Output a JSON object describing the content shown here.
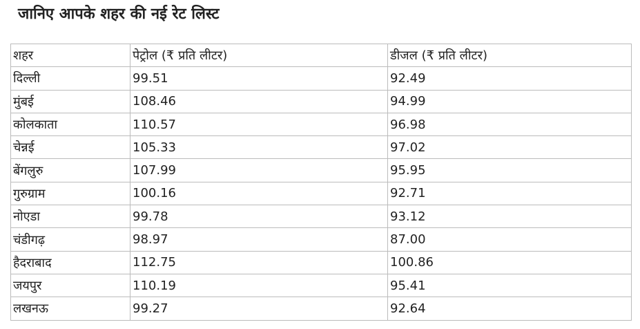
{
  "header": {
    "title": "जानिए आपके शहर की नई रेट लिस्ट"
  },
  "table": {
    "columns": [
      "शहर",
      "पेट्रोल (₹ प्रति लीटर)",
      "डीजल (₹ प्रति लीटर)"
    ],
    "rows": [
      [
        "दिल्ली",
        "99.51",
        "92.49"
      ],
      [
        "मुंबई",
        "108.46",
        "94.99"
      ],
      [
        "कोलकाता",
        "110.57",
        "96.98"
      ],
      [
        "चेन्नई",
        "105.33",
        "97.02"
      ],
      [
        "बेंगलुरु",
        "107.99",
        "95.95"
      ],
      [
        "गुरुग्राम",
        "100.16",
        "92.71"
      ],
      [
        "नोएडा",
        "99.78",
        "93.12"
      ],
      [
        "चंडीगढ़",
        "98.97",
        "87.00"
      ],
      [
        "हैदराबाद",
        "112.75",
        "100.86"
      ],
      [
        "जयपुर",
        "110.19",
        "95.41"
      ],
      [
        "लखनऊ",
        "99.27",
        "92.64"
      ]
    ]
  }
}
